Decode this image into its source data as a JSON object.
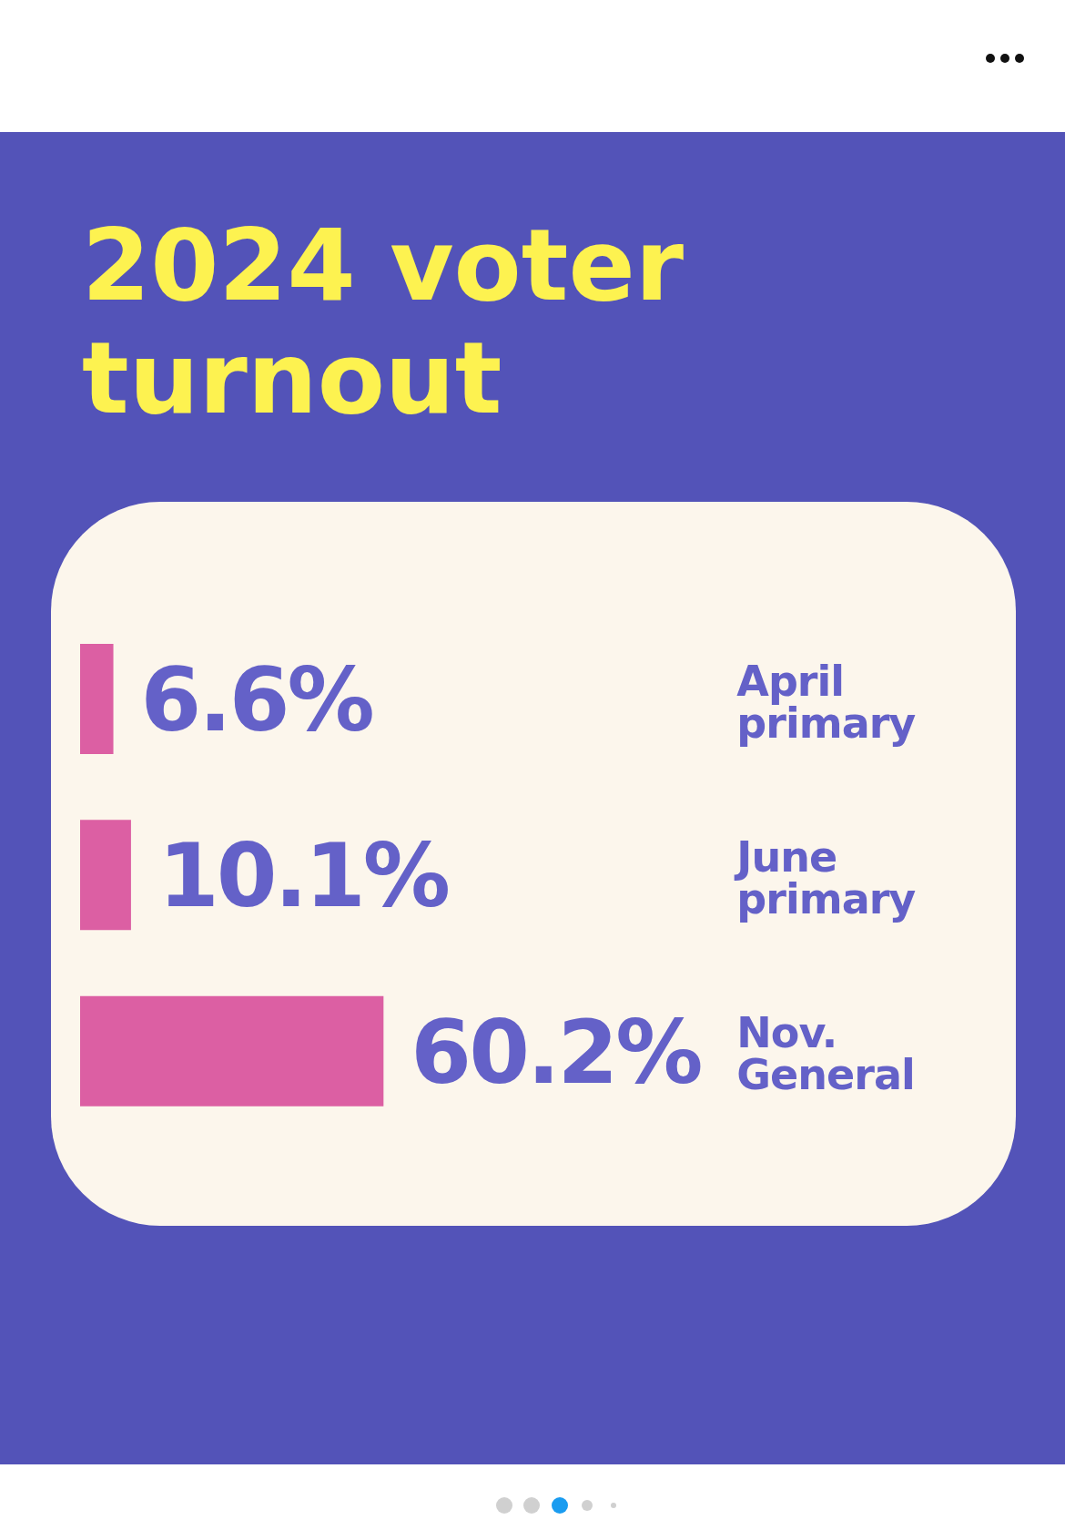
{
  "chart_data": {
    "type": "bar",
    "orientation": "horizontal",
    "title": "2024 voter turnout",
    "categories": [
      "April primary",
      "June primary",
      "Nov. General"
    ],
    "values": [
      6.6,
      10.1,
      60.2
    ],
    "value_labels": [
      "6.6%",
      "10.1%",
      "60.2%"
    ],
    "color": "#dc5fa3",
    "tick_labels": false
  }
}
